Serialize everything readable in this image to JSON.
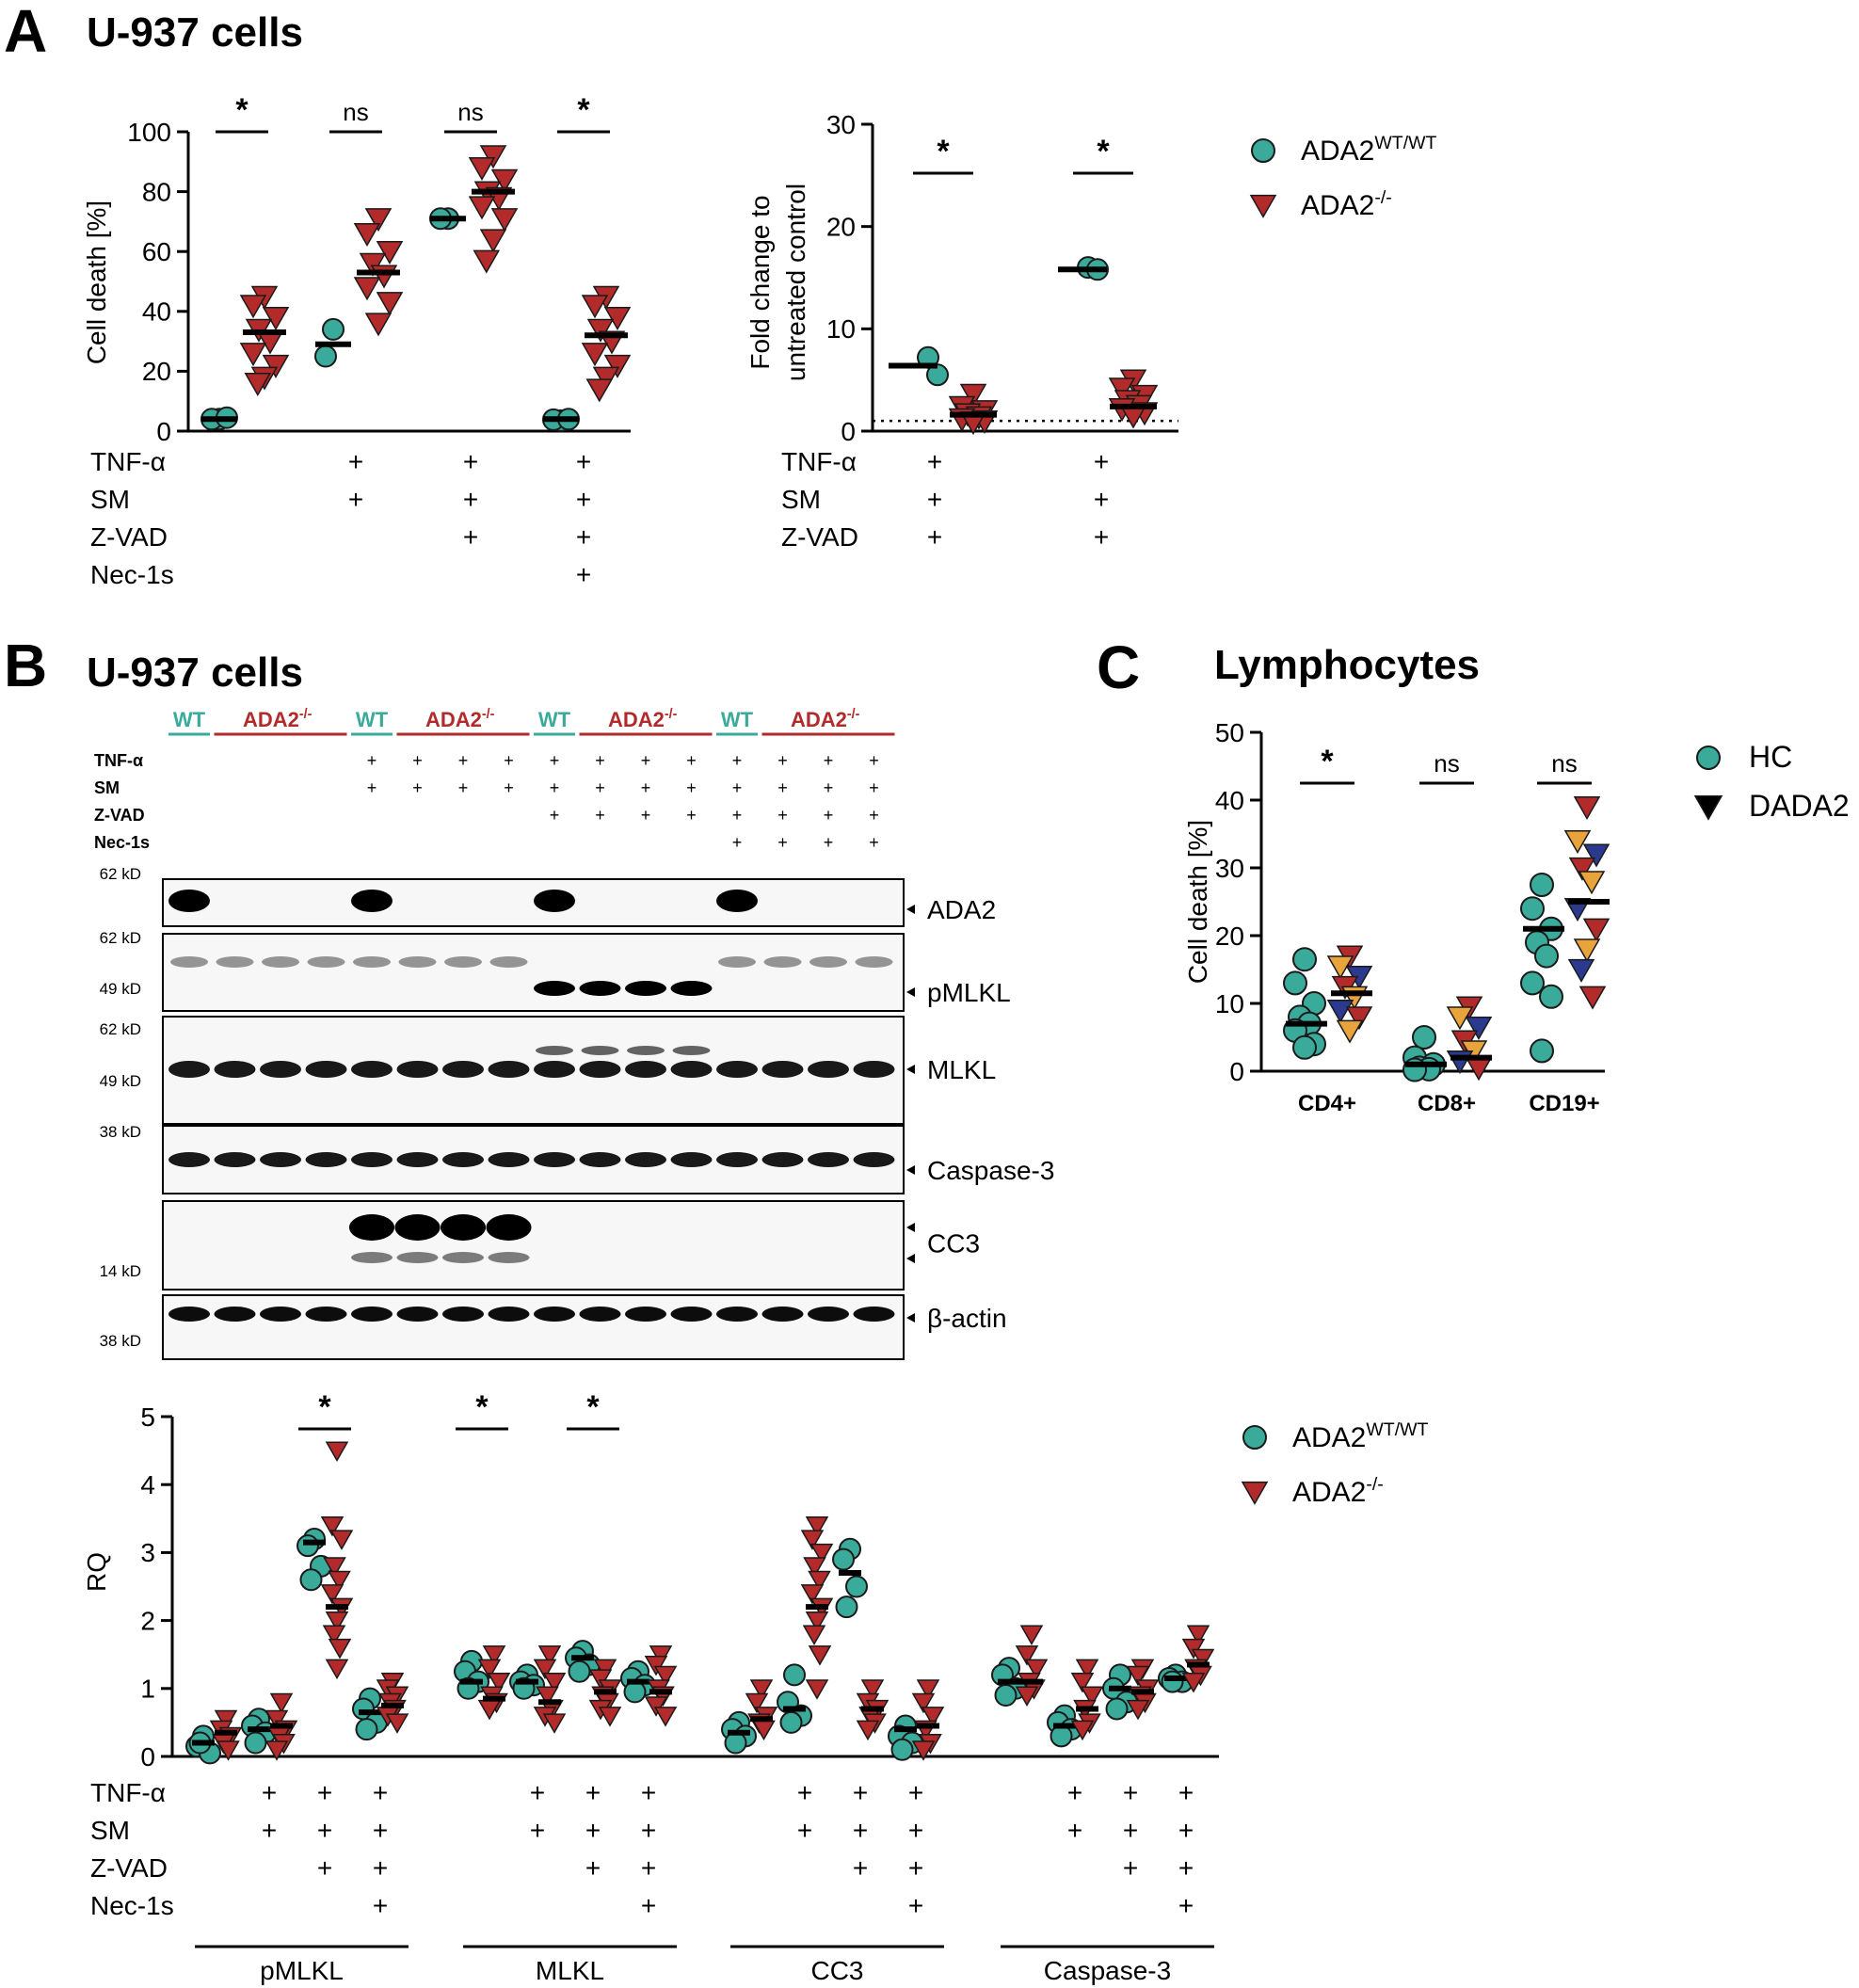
{
  "panels": {
    "A": {
      "letter": "A",
      "title": "U-937 cells"
    },
    "B": {
      "letter": "B",
      "title": "U-937 cells"
    },
    "C": {
      "letter": "C",
      "title": "Lymphocytes"
    }
  },
  "colors": {
    "wt": "#3aaa9b",
    "ko": "#b22a2a",
    "mean": "#000000",
    "orange": "#e8a33a",
    "navy": "#2b3a8f"
  },
  "treatments": {
    "tnf": "TNF-α",
    "sm": "SM",
    "zvad": "Z-VAD",
    "nec": "Nec-1s",
    "plus": "+"
  },
  "legend_ada2": [
    {
      "label": "ADA2",
      "sup": "WT/WT",
      "marker": "circle",
      "color": "#3aaa9b"
    },
    {
      "label": "ADA2",
      "sup": "-/-",
      "marker": "triangle",
      "color": "#b22a2a"
    }
  ],
  "legend_c": [
    {
      "label": "HC",
      "marker": "circle",
      "color": "#3aaa9b"
    },
    {
      "label": "DADA2",
      "marker": "triangle",
      "color": "#000000"
    }
  ],
  "blot": {
    "group_labels": [
      {
        "text": "WT",
        "color": "#3aaa9b"
      },
      {
        "text": "ADA2",
        "sup": "-/-",
        "color": "#b22a2a"
      },
      {
        "text": "WT",
        "color": "#3aaa9b"
      },
      {
        "text": "ADA2",
        "sup": "-/-",
        "color": "#b22a2a"
      },
      {
        "text": "WT",
        "color": "#3aaa9b"
      },
      {
        "text": "ADA2",
        "sup": "-/-",
        "color": "#b22a2a"
      },
      {
        "text": "WT",
        "color": "#3aaa9b"
      },
      {
        "text": "ADA2",
        "sup": "-/-",
        "color": "#b22a2a"
      }
    ],
    "bands": [
      {
        "name": "ADA2",
        "mw_top": "62 kD",
        "mw_bottom": ""
      },
      {
        "name": "pMLKL",
        "mw_top": "62 kD",
        "mw_bottom": "49 kD"
      },
      {
        "name": "MLKL",
        "mw_top": "62 kD",
        "mw_bottom": "49 kD"
      },
      {
        "name": "Caspase-3",
        "mw_top": "38 kD",
        "mw_bottom": ""
      },
      {
        "name": "CC3",
        "mw_top": "",
        "mw_bottom": "14 kD"
      },
      {
        "name": "β-actin",
        "mw_top": "",
        "mw_bottom": "38 kD"
      }
    ]
  },
  "chart_data": [
    {
      "id": "A-left",
      "type": "scatter",
      "ylabel": "Cell death [%]",
      "ylim": [
        0,
        100
      ],
      "yticks": [
        0,
        20,
        40,
        60,
        80,
        100
      ],
      "significance": [
        "*",
        "ns",
        "ns",
        "*"
      ],
      "treatment_rows": {
        "TNF-α": [
          "",
          "+",
          "+",
          "+"
        ],
        "SM": [
          "",
          "+",
          "+",
          "+"
        ],
        "Z-VAD": [
          "",
          "",
          "+",
          "+"
        ],
        "Nec-1s": [
          "",
          "",
          "",
          "+"
        ]
      },
      "series": [
        {
          "name": "ADA2 WT/WT",
          "groups": [
            [
              4,
              4,
              4.5
            ],
            [
              34,
              25
            ],
            [
              71,
              71
            ],
            [
              3.5,
              3.8,
              4
            ]
          ],
          "means": [
            4,
            29,
            71,
            4
          ]
        },
        {
          "name": "ADA2 -/-",
          "groups": [
            [
              45,
              42,
              38,
              34,
              30,
              26,
              22,
              18,
              16
            ],
            [
              71,
              66,
              60,
              56,
              52,
              48,
              43,
              36
            ],
            [
              92,
              88,
              84,
              80,
              78,
              75,
              71,
              64,
              57
            ],
            [
              45,
              42,
              38,
              34,
              30,
              26,
              22,
              18,
              14
            ]
          ],
          "means": [
            33,
            53,
            80,
            32
          ]
        }
      ]
    },
    {
      "id": "A-right",
      "type": "scatter",
      "ylabel": "Fold change to untreated control",
      "ylim": [
        0,
        30
      ],
      "yticks": [
        0,
        10,
        20,
        30
      ],
      "reference_line": 1,
      "significance": [
        "*",
        "*"
      ],
      "treatment_rows": {
        "TNF-α": [
          "+",
          "+"
        ],
        "SM": [
          "+",
          "+"
        ],
        "Z-VAD": [
          "+",
          "+"
        ]
      },
      "series": [
        {
          "name": "ADA2 WT/WT",
          "groups": [
            [
              7.2,
              5.5
            ],
            [
              16,
              15.8
            ]
          ],
          "means": [
            6.4,
            15.8
          ]
        },
        {
          "name": "ADA2 -/-",
          "groups": [
            [
              3.6,
              2.4,
              2.0,
              1.7,
              1.4,
              1.2,
              1.0,
              0.9
            ],
            [
              5.0,
              4.2,
              3.5,
              3.0,
              2.5,
              2.2,
              1.8,
              1.5
            ]
          ],
          "means": [
            1.6,
            2.4
          ]
        }
      ]
    },
    {
      "id": "C",
      "type": "scatter",
      "ylabel": "Cell death [%]",
      "ylim": [
        0,
        50
      ],
      "yticks": [
        0,
        10,
        20,
        30,
        40,
        50
      ],
      "categories": [
        "CD4+",
        "CD8+",
        "CD19+"
      ],
      "significance": [
        "*",
        "ns",
        "ns"
      ],
      "series": [
        {
          "name": "HC",
          "groups": [
            [
              16.5,
              13,
              10,
              8,
              7,
              6,
              4,
              3.5
            ],
            [
              5,
              2,
              1,
              0.5,
              0.3,
              0.2
            ],
            [
              27.5,
              24,
              21,
              19,
              17,
              13,
              11,
              3
            ]
          ],
          "means": [
            7,
            1,
            21
          ]
        },
        {
          "name": "DADA2",
          "groups": [
            [
              17,
              15.5,
              14,
              12.5,
              11,
              9,
              8,
              6
            ],
            [
              9.5,
              8,
              6.5,
              4.5,
              3,
              1.5,
              0.5
            ],
            [
              39,
              34,
              32,
              30,
              28,
              24,
              21,
              18,
              15,
              11
            ]
          ],
          "means": [
            11.5,
            2,
            25
          ]
        }
      ]
    },
    {
      "id": "B-quant",
      "type": "scatter",
      "ylabel": "RQ",
      "ylim": [
        0,
        5
      ],
      "yticks": [
        0,
        1,
        2,
        3,
        4,
        5
      ],
      "significance": [
        {
          "protein": "pMLKL",
          "cond": 2,
          "label": "*"
        },
        {
          "protein": "MLKL",
          "cond": 0,
          "label": "*"
        },
        {
          "protein": "MLKL",
          "cond": 2,
          "label": "*"
        }
      ],
      "proteins": [
        "pMLKL",
        "MLKL",
        "CC3",
        "Caspase-3"
      ],
      "treatment_rows": {
        "TNF-α": [
          "",
          "+",
          "+",
          "+"
        ],
        "SM": [
          "",
          "+",
          "+",
          "+"
        ],
        "Z-VAD": [
          "",
          "",
          "+",
          "+"
        ],
        "Nec-1s": [
          "",
          "",
          "",
          "+"
        ]
      },
      "series": [
        {
          "name": "ADA2 WT/WT",
          "groups": {
            "pMLKL": [
              [
                0.3,
                0.15,
                0.05,
                0.2
              ],
              [
                0.55,
                0.45,
                0.35,
                0.2
              ],
              [
                3.2,
                3.1,
                2.8,
                2.6
              ],
              [
                0.85,
                0.7,
                0.5,
                0.4
              ]
            ],
            "MLKL": [
              [
                1.4,
                1.25,
                1.1,
                1.0
              ],
              [
                1.2,
                1.1,
                1.05,
                1.0
              ],
              [
                1.55,
                1.45,
                1.35,
                1.25
              ],
              [
                1.25,
                1.15,
                1.05,
                0.95
              ]
            ],
            "CC3": [
              [
                0.5,
                0.4,
                0.3,
                0.2
              ],
              [
                1.2,
                0.8,
                0.6,
                0.5
              ],
              [
                3.05,
                2.9,
                2.5,
                2.2
              ],
              [
                0.45,
                0.3,
                0.2,
                0.1
              ]
            ],
            "Caspase-3": [
              [
                1.3,
                1.2,
                1.0,
                0.9
              ],
              [
                0.6,
                0.5,
                0.4,
                0.3
              ],
              [
                1.2,
                1.0,
                0.8,
                0.7
              ],
              [
                1.2,
                1.15,
                1.1,
                1.1
              ]
            ]
          },
          "means": {
            "pMLKL": [
              0.2,
              0.4,
              3.15,
              0.65
            ],
            "MLKL": [
              1.1,
              1.1,
              1.45,
              1.1
            ],
            "CC3": [
              0.35,
              0.7,
              2.7,
              0.4
            ],
            "Caspase-3": [
              1.1,
              0.45,
              1.0,
              1.15
            ]
          }
        },
        {
          "name": "ADA2 -/-",
          "groups": {
            "pMLKL": [
              [
                0.55,
                0.4,
                0.3,
                0.2,
                0.1
              ],
              [
                0.8,
                0.55,
                0.4,
                0.3,
                0.2,
                0.1
              ],
              [
                4.5,
                3.4,
                3.2,
                2.8,
                2.6,
                2.4,
                2.2,
                2.0,
                1.8,
                1.6,
                1.3
              ],
              [
                1.1,
                1.0,
                0.9,
                0.8,
                0.7,
                0.6,
                0.5
              ]
            ],
            "MLKL": [
              [
                1.5,
                1.3,
                1.1,
                0.9,
                0.8,
                0.7
              ],
              [
                1.5,
                1.3,
                1.1,
                0.9,
                0.7,
                0.6,
                0.5
              ],
              [
                1.3,
                1.15,
                1.0,
                0.9,
                0.8,
                0.7,
                0.6
              ],
              [
                1.5,
                1.35,
                1.2,
                1.0,
                0.9,
                0.75,
                0.6
              ]
            ],
            "CC3": [
              [
                1.0,
                0.8,
                0.6,
                0.5,
                0.4
              ],
              [
                3.4,
                3.2,
                3.0,
                2.8,
                2.6,
                2.4,
                2.2,
                2.0,
                1.8,
                1.5,
                1.0
              ],
              [
                1.0,
                0.8,
                0.7,
                0.6,
                0.5,
                0.4
              ],
              [
                1.0,
                0.8,
                0.6,
                0.4,
                0.2,
                0.1
              ]
            ],
            "Caspase-3": [
              [
                1.8,
                1.5,
                1.3,
                1.1,
                1.0,
                0.9
              ],
              [
                1.3,
                1.1,
                0.9,
                0.7,
                0.5,
                0.4
              ],
              [
                1.3,
                1.2,
                1.0,
                0.9,
                0.8,
                0.7
              ],
              [
                1.8,
                1.6,
                1.45,
                1.3,
                1.2,
                1.1
              ]
            ]
          },
          "means": {
            "pMLKL": [
              0.35,
              0.45,
              2.2,
              0.75
            ],
            "MLKL": [
              0.85,
              0.8,
              0.95,
              0.95
            ],
            "CC3": [
              0.55,
              2.2,
              0.7,
              0.45
            ],
            "Caspase-3": [
              1.1,
              0.7,
              0.95,
              1.35
            ]
          }
        }
      ]
    }
  ]
}
